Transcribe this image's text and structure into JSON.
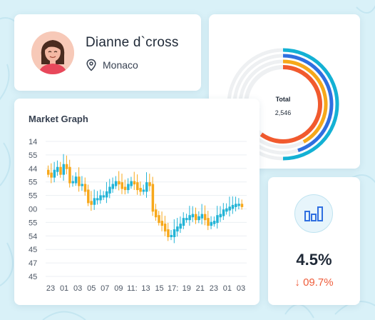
{
  "profile": {
    "name": "Dianne d`cross",
    "location": "Monaco",
    "avatar_icon": "woman-avatar-icon",
    "location_icon": "map-pin-icon"
  },
  "donut": {
    "center_label": "Total",
    "center_value": "2,546",
    "rings": [
      {
        "color": "#13b1d4",
        "fraction": 0.5
      },
      {
        "color": "#2f6fe0",
        "fraction": 0.45
      },
      {
        "color": "#f6a81a",
        "fraction": 0.42
      },
      {
        "color": "#f15a2e",
        "fraction": 0.6
      }
    ],
    "track_color": "#eef0f2"
  },
  "market": {
    "title": "Market Graph",
    "y_labels": [
      "14",
      "55",
      "44",
      "55",
      "55",
      "00",
      "55",
      "54",
      "45",
      "47",
      "45"
    ],
    "x_labels": [
      "23",
      "01",
      "03",
      "05",
      "07",
      "09",
      "11:",
      "13",
      "15",
      "17:",
      "19",
      "21",
      "23",
      "01",
      "03"
    ],
    "up_color": "#22b4d6",
    "down_color": "#f7a81b"
  },
  "stat": {
    "icon": "bar-chart-icon",
    "value": "4.5%",
    "arrow_icon": "arrow-down-icon",
    "change": "09.7%"
  },
  "colors": {
    "background": "#d9f1f8",
    "accent_red": "#ef5d3b"
  }
}
